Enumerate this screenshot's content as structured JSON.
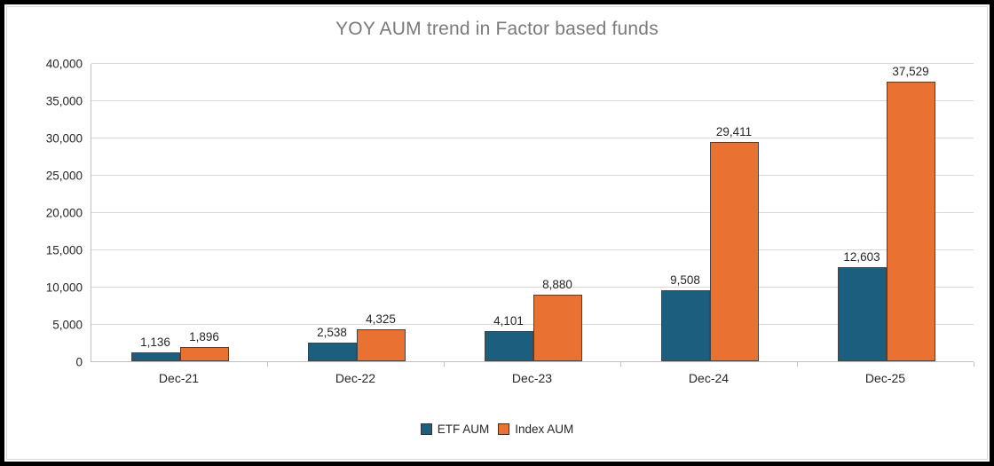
{
  "chart_data": {
    "type": "bar",
    "title": "YOY AUM trend in Factor based funds",
    "categories": [
      "Dec-21",
      "Dec-22",
      "Dec-23",
      "Dec-24",
      "Dec-25"
    ],
    "series": [
      {
        "name": "ETF AUM",
        "color": "#1b5e7e",
        "border_color": "#2b3a42",
        "values": [
          1136,
          2538,
          4101,
          9508,
          12603
        ]
      },
      {
        "name": "Index AUM",
        "color": "#e97132",
        "border_color": "#5f4132",
        "values": [
          1896,
          4325,
          8880,
          29411,
          37529
        ]
      }
    ],
    "ylim": [
      0,
      40000
    ],
    "ytick_step": 5000,
    "ytick_labels": [
      "0",
      "5,000",
      "10,000",
      "15,000",
      "20,000",
      "25,000",
      "30,000",
      "35,000",
      "40,000"
    ],
    "grid": true,
    "legend_position": "bottom",
    "xlabel": "",
    "ylabel": "",
    "data_labels_shown": true
  },
  "style_colors": {
    "title_text": "#7a7a7a",
    "axis_line": "#bfbfbf",
    "gridline": "#d9d9d9",
    "label_text": "#262626",
    "chart_border": "#d9d9d9",
    "frame": "#000000",
    "background": "#ffffff"
  }
}
